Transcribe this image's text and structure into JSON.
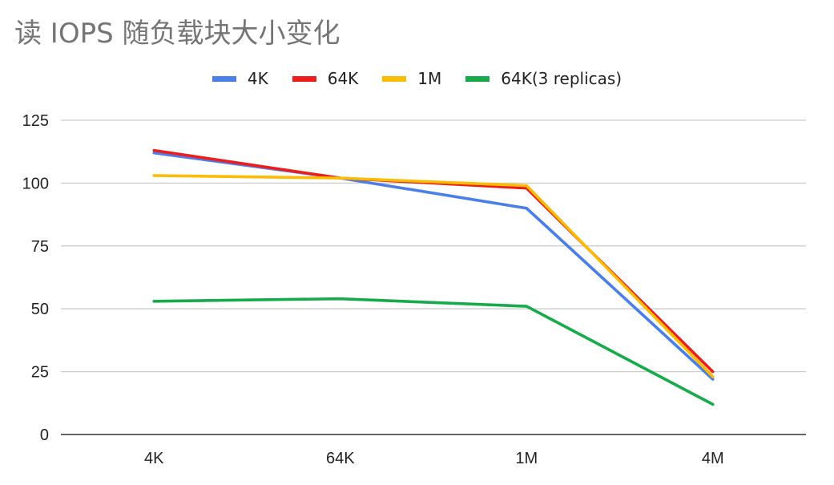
{
  "chart_data": {
    "type": "line",
    "title": "读 IOPS 随负载块大小变化",
    "categories": [
      "4K",
      "64K",
      "1M",
      "4M"
    ],
    "series": [
      {
        "name": "4K",
        "color": "#4a7ee8",
        "values": [
          112,
          102,
          90,
          22
        ]
      },
      {
        "name": "64K",
        "color": "#ef1c1c",
        "values": [
          113,
          102,
          98,
          25
        ]
      },
      {
        "name": "1M",
        "color": "#fbbc04",
        "values": [
          103,
          102,
          99,
          23
        ]
      },
      {
        "name": "64K(3 replicas)",
        "color": "#16ab4a",
        "values": [
          53,
          54,
          51,
          12
        ]
      }
    ],
    "yticks": [
      "0",
      "25",
      "50",
      "75",
      "100",
      "125"
    ],
    "ylim": [
      0,
      125
    ],
    "grid": true,
    "legend_position": "top"
  }
}
